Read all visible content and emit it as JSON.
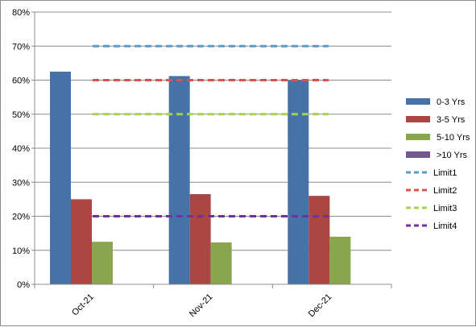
{
  "chart_data": {
    "type": "bar",
    "categories": [
      "Oct-21",
      "Nov-21",
      "Dec-21"
    ],
    "series": [
      {
        "name": "0-3 Yrs",
        "values": [
          62.5,
          61.2,
          60.0
        ],
        "color": "#4572a7"
      },
      {
        "name": "3-5 Yrs",
        "values": [
          25.0,
          26.5,
          26.0
        ],
        "color": "#aa4643"
      },
      {
        "name": "5-10 Yrs",
        "values": [
          12.5,
          12.3,
          14.0
        ],
        "color": "#89a54e"
      },
      {
        "name": ">10 Yrs",
        "values": [
          0,
          0,
          0
        ],
        "color": "#71588f"
      }
    ],
    "limits": [
      {
        "name": "Limit1",
        "value": 70,
        "color": "#4198af"
      },
      {
        "name": "Limit2",
        "value": 60,
        "color": "#db843d"
      },
      {
        "name": "Limit3",
        "value": 50,
        "color": "#a4d24f"
      },
      {
        "name": "Limit4",
        "value": 20,
        "color": "#7030a0"
      }
    ],
    "limit_colors_override": [
      "#4f9fd0",
      "#d9534f",
      "#a6d24a",
      "#7030a0"
    ],
    "ylim": [
      0,
      80
    ],
    "yticks": [
      "0%",
      "10%",
      "20%",
      "30%",
      "40%",
      "50%",
      "60%",
      "70%",
      "80%"
    ],
    "grid": true,
    "legend_position": "right",
    "title": "",
    "xlabel": "",
    "ylabel": ""
  }
}
